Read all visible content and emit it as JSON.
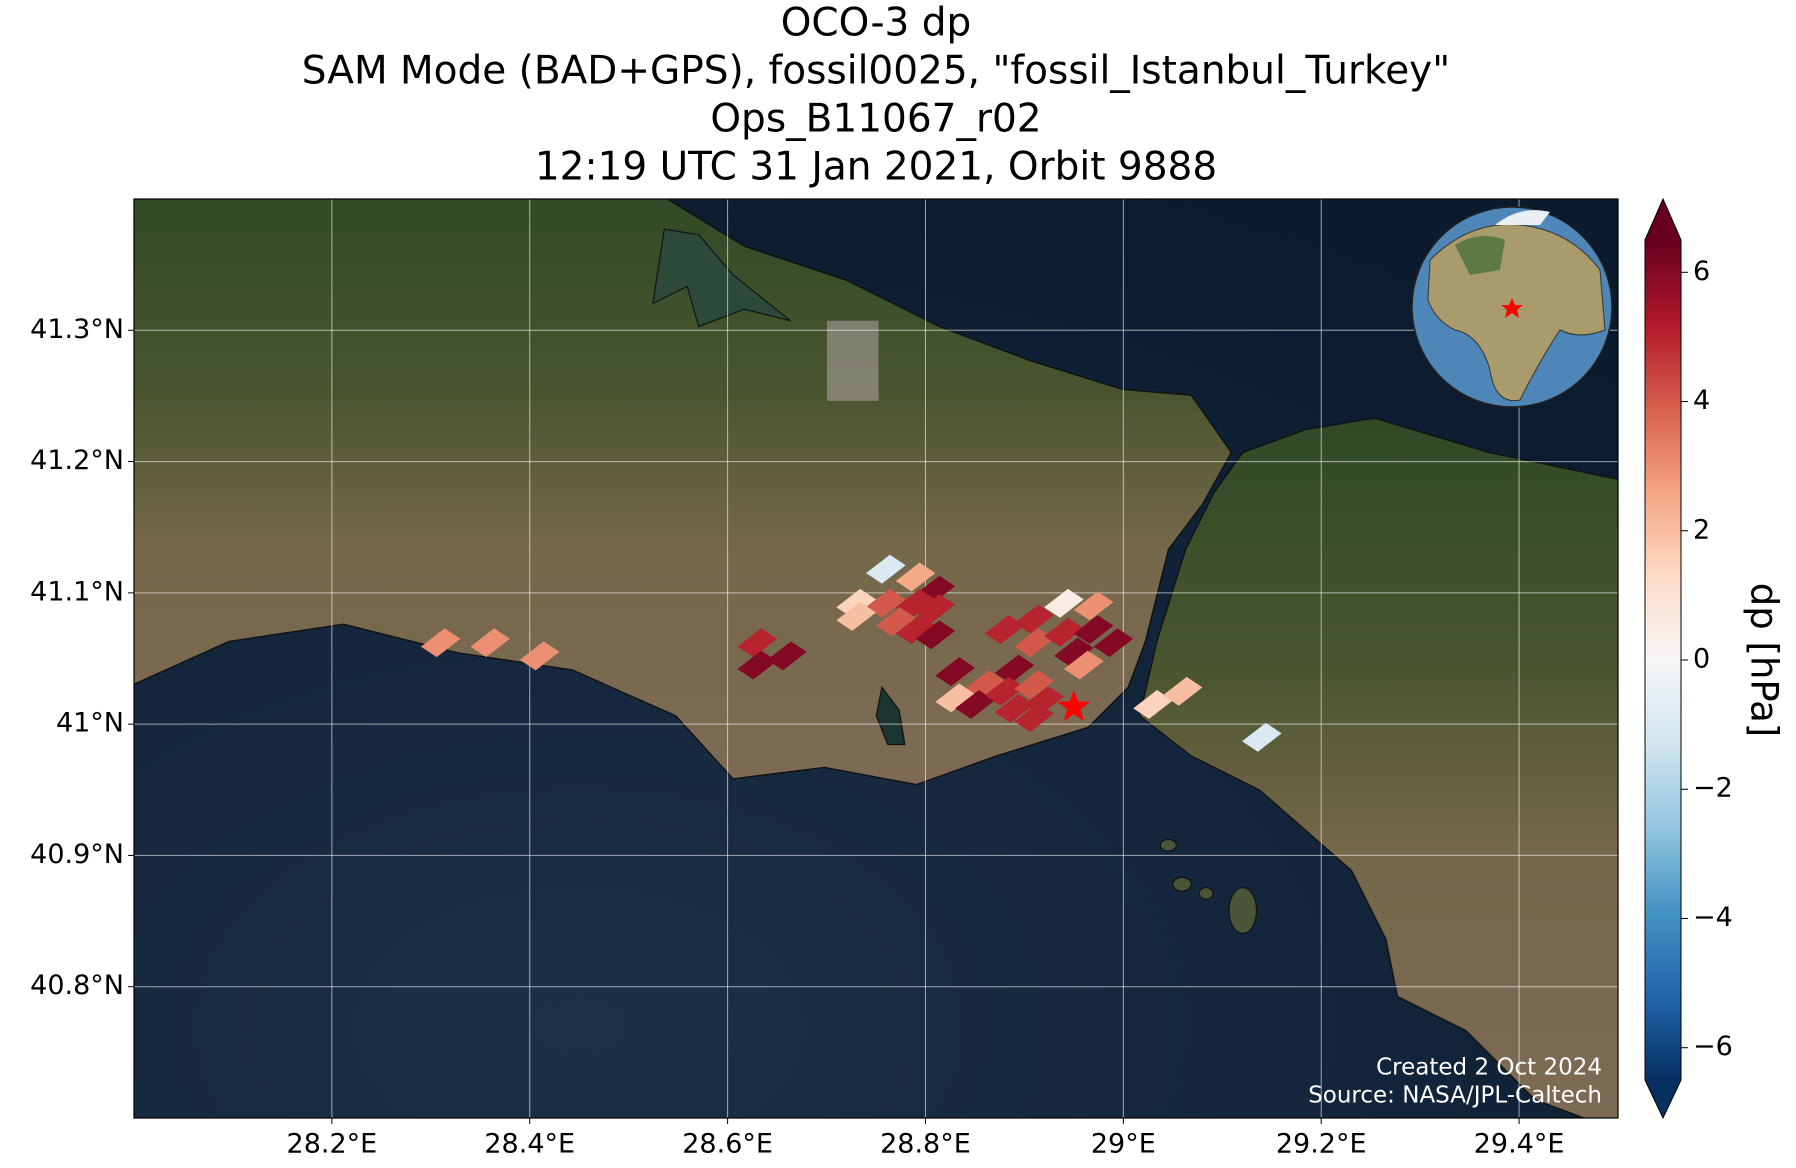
{
  "chart_data": {
    "type": "map",
    "title": [
      "OCO-3 dp",
      "SAM Mode (BAD+GPS), fossil0025, \"fossil_Istanbul_Turkey\"",
      "Ops_B11067_r02",
      "12:19 UTC 31 Jan 2021, Orbit 9888"
    ],
    "xlim": [
      28.0,
      29.5
    ],
    "ylim": [
      40.7,
      41.4
    ],
    "xticks": [
      {
        "value": 28.2,
        "label": "28.2°E"
      },
      {
        "value": 28.4,
        "label": "28.4°E"
      },
      {
        "value": 28.6,
        "label": "28.6°E"
      },
      {
        "value": 28.8,
        "label": "28.8°E"
      },
      {
        "value": 29.0,
        "label": "29°E"
      },
      {
        "value": 29.2,
        "label": "29.2°E"
      },
      {
        "value": 29.4,
        "label": "29.4°E"
      }
    ],
    "yticks": [
      {
        "value": 40.8,
        "label": "40.8°N"
      },
      {
        "value": 40.9,
        "label": "40.9°N"
      },
      {
        "value": 41.0,
        "label": "41°N"
      },
      {
        "value": 41.1,
        "label": "41.1°N"
      },
      {
        "value": 41.2,
        "label": "41.2°N"
      },
      {
        "value": 41.3,
        "label": "41.3°N"
      }
    ],
    "grid": true,
    "lon": [
      28.31,
      28.36,
      28.41,
      28.63,
      28.66,
      28.63,
      28.76,
      28.79,
      28.81,
      28.73,
      28.76,
      28.79,
      28.81,
      28.77,
      28.73,
      28.79,
      28.81,
      28.88,
      28.91,
      28.94,
      28.97,
      28.91,
      28.94,
      28.97,
      28.99,
      28.95,
      28.96,
      28.83,
      28.86,
      28.83,
      28.85,
      28.89,
      28.88,
      28.91,
      28.89,
      28.92,
      28.91,
      29.03,
      29.06,
      29.14
    ],
    "lat": [
      41.062,
      41.062,
      41.052,
      41.062,
      41.052,
      41.045,
      41.118,
      41.112,
      41.102,
      41.092,
      41.092,
      41.092,
      41.088,
      41.078,
      41.082,
      41.072,
      41.068,
      41.072,
      41.08,
      41.092,
      41.09,
      41.062,
      41.07,
      41.072,
      41.062,
      41.055,
      41.045,
      41.04,
      41.03,
      41.02,
      41.015,
      41.042,
      41.025,
      41.03,
      41.012,
      41.018,
      41.005,
      41.015,
      41.025,
      40.99
    ],
    "values": [
      3,
      3,
      3,
      5,
      6,
      6,
      -1,
      2.5,
      6,
      1.5,
      4,
      5,
      5,
      4,
      2,
      5,
      6,
      5,
      5,
      0.5,
      3,
      4,
      5,
      6,
      6,
      6,
      3,
      6,
      4,
      2,
      6,
      6,
      5,
      4,
      5,
      5,
      5,
      1.5,
      2,
      -1
    ],
    "target": {
      "lon": 28.95,
      "lat": 41.013,
      "color": "#ff0000"
    },
    "colormap": [
      "#053061",
      "#2166ac",
      "#4393c3",
      "#92c5de",
      "#d1e5f0",
      "#f7f7f7",
      "#fddbc7",
      "#f4a582",
      "#d6604d",
      "#b2182b",
      "#67001f"
    ],
    "clim": [
      -6.5,
      6.5
    ],
    "cticks": [
      {
        "value": -6,
        "label": "−6"
      },
      {
        "value": -4,
        "label": "−4"
      },
      {
        "value": -2,
        "label": "−2"
      },
      0,
      2,
      4,
      6
    ],
    "colorbar_label": "dp [hPa]",
    "credits": [
      "Created 2 Oct 2024",
      "Source: NASA/JPL-Caltech"
    ]
  }
}
